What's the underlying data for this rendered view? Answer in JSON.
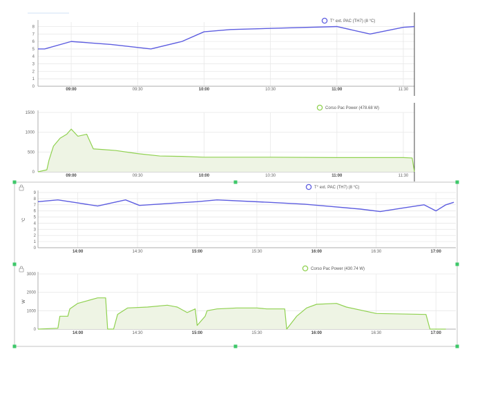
{
  "chart_data": [
    {
      "id": "temp-morning",
      "type": "line",
      "legend": "T° ext. PAC (TH7) (8 °C)",
      "series": [
        {
          "name": "T° ext. PAC (TH7) (8 °C)",
          "color": "#5c5ce0",
          "x": [
            "08:45",
            "08:48",
            "09:00",
            "09:18",
            "09:36",
            "09:50",
            "10:00",
            "10:12",
            "10:35",
            "11:00",
            "11:15",
            "11:30",
            "11:35"
          ],
          "values": [
            5,
            5,
            6,
            5.6,
            5,
            6,
            7.3,
            7.6,
            7.8,
            8,
            7,
            7.9,
            8
          ]
        }
      ],
      "yticks": [
        0,
        1,
        2,
        3,
        4,
        5,
        6,
        7,
        8
      ],
      "ylim": [
        0,
        8.6
      ],
      "xrange": [
        "08:45",
        "11:35"
      ],
      "xticks": [
        {
          "t": "09:00",
          "label": "09:00",
          "bold": true
        },
        {
          "t": "09:30",
          "label": "09:30",
          "bold": false
        },
        {
          "t": "10:00",
          "label": "10:00",
          "bold": true
        },
        {
          "t": "10:30",
          "label": "10:30",
          "bold": false
        },
        {
          "t": "11:00",
          "label": "11:00",
          "bold": true
        },
        {
          "t": "11:30",
          "label": "11:30",
          "bold": false
        }
      ],
      "ylabel": "",
      "handle_visible": false
    },
    {
      "id": "power-morning",
      "type": "area",
      "legend": "Corso Pac Power (478.68 W)",
      "series": [
        {
          "name": "Corso Pac Power (478.68 W)",
          "color": "#8fd14f",
          "x": [
            "08:45",
            "08:49",
            "08:50",
            "08:52",
            "08:55",
            "08:58",
            "09:00",
            "09:03",
            "09:07",
            "09:10",
            "09:15",
            "09:20",
            "09:30",
            "09:40",
            "09:50",
            "10:00",
            "10:30",
            "11:00",
            "11:30",
            "11:34",
            "11:35"
          ],
          "values": [
            0,
            50,
            300,
            650,
            850,
            950,
            1080,
            900,
            950,
            580,
            560,
            540,
            460,
            400,
            390,
            370,
            370,
            360,
            360,
            350,
            0
          ]
        }
      ],
      "yticks": [
        0,
        500,
        1000,
        1500
      ],
      "ytick_labels": [
        "0",
        "500",
        "1000",
        "1500"
      ],
      "ylim": [
        0,
        1500
      ],
      "xrange": [
        "08:45",
        "11:35"
      ],
      "xticks": [
        {
          "t": "09:00",
          "label": "09:00",
          "bold": true
        },
        {
          "t": "09:30",
          "label": "09:30",
          "bold": false
        },
        {
          "t": "10:00",
          "label": "10:00",
          "bold": true
        },
        {
          "t": "10:30",
          "label": "10:30",
          "bold": false
        },
        {
          "t": "11:00",
          "label": "11:00",
          "bold": true
        },
        {
          "t": "11:30",
          "label": "11:30",
          "bold": false
        }
      ],
      "ylabel": "",
      "handle_visible": false
    },
    {
      "id": "temp-afternoon",
      "type": "line",
      "legend": "T° ext. PAC (TH7) (8 °C)",
      "series": [
        {
          "name": "T° ext. PAC (TH7) (8 °C)",
          "color": "#5c5ce0",
          "x": [
            "13:40",
            "13:50",
            "14:00",
            "14:10",
            "14:24",
            "14:31",
            "14:50",
            "15:00",
            "15:10",
            "15:36",
            "15:54",
            "16:08",
            "16:22",
            "16:32",
            "16:44",
            "16:54",
            "17:00",
            "17:05",
            "17:09"
          ],
          "values": [
            7.5,
            7.8,
            7.3,
            6.8,
            7.8,
            6.9,
            7.3,
            7.5,
            7.8,
            7.4,
            7.1,
            6.7,
            6.3,
            5.9,
            6.5,
            7,
            6,
            7,
            7.4
          ]
        }
      ],
      "yticks": [
        0,
        1,
        2,
        3,
        4,
        5,
        6,
        7,
        8,
        9
      ],
      "ylim": [
        0,
        9
      ],
      "xrange": [
        "13:40",
        "17:10"
      ],
      "xticks": [
        {
          "t": "14:00",
          "label": "14:00",
          "bold": true
        },
        {
          "t": "14:30",
          "label": "14:30",
          "bold": false
        },
        {
          "t": "15:00",
          "label": "15:00",
          "bold": true
        },
        {
          "t": "15:30",
          "label": "15:30",
          "bold": false
        },
        {
          "t": "16:00",
          "label": "16:00",
          "bold": true
        },
        {
          "t": "16:30",
          "label": "16:30",
          "bold": false
        },
        {
          "t": "17:00",
          "label": "17:00",
          "bold": true
        }
      ],
      "ylabel": "°C",
      "handle_visible": true
    },
    {
      "id": "power-afternoon",
      "type": "area",
      "legend": "Corso Pac Power (430.74 W)",
      "series": [
        {
          "name": "Corso Pac Power (430.74 W)",
          "color": "#8fd14f",
          "x": [
            "13:40",
            "13:50",
            "13:51",
            "13:55",
            "13:56",
            "14:00",
            "14:05",
            "14:10",
            "14:14",
            "14:15",
            "14:18",
            "14:20",
            "14:25",
            "14:35",
            "14:45",
            "14:50",
            "14:55",
            "14:59",
            "15:00",
            "15:04",
            "15:05",
            "15:10",
            "15:20",
            "15:30",
            "15:35",
            "15:44",
            "15:45",
            "15:50",
            "15:55",
            "16:00",
            "16:10",
            "16:15",
            "16:30",
            "16:55",
            "16:57",
            "17:00",
            "17:05"
          ],
          "values": [
            0,
            50,
            700,
            700,
            1100,
            1400,
            1550,
            1700,
            1700,
            0,
            0,
            800,
            1150,
            1200,
            1300,
            1200,
            900,
            1100,
            200,
            700,
            1000,
            1100,
            1150,
            1150,
            1100,
            1100,
            0,
            700,
            1150,
            1350,
            1400,
            1200,
            850,
            800,
            0,
            0,
            0
          ]
        }
      ],
      "yticks": [
        0,
        1000,
        2000,
        3000
      ],
      "ytick_labels": [
        "0",
        "1000",
        "2000",
        "3000"
      ],
      "ylim": [
        0,
        3000
      ],
      "xrange": [
        "13:40",
        "17:10"
      ],
      "xticks": [
        {
          "t": "14:00",
          "label": "14:00",
          "bold": true
        },
        {
          "t": "14:30",
          "label": "14:30",
          "bold": false
        },
        {
          "t": "15:00",
          "label": "15:00",
          "bold": true
        },
        {
          "t": "15:30",
          "label": "15:30",
          "bold": false
        },
        {
          "t": "16:00",
          "label": "16:00",
          "bold": true
        },
        {
          "t": "16:30",
          "label": "16:30",
          "bold": false
        },
        {
          "t": "17:00",
          "label": "17:00",
          "bold": true
        }
      ],
      "ylabel": "W",
      "handle_visible": true
    }
  ],
  "colors": {
    "temperature": "#5c5ce0",
    "power": "#8fd14f",
    "power_fill": "#eef4e4",
    "selection_handle": "#3ec86a"
  }
}
